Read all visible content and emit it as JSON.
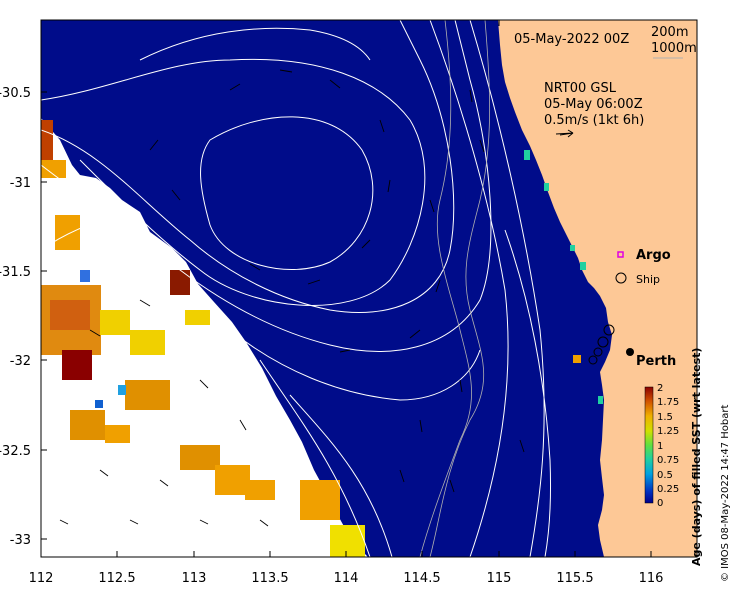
{
  "date_label": "05-May-2022 00Z",
  "bathymetry_legend": {
    "line1": "200m",
    "line2": "1000m"
  },
  "current_info": {
    "line1": "NRT00 GSL",
    "line2": "05-May 06:00Z",
    "line3": "0.5m/s (1kt 6h)"
  },
  "markers": {
    "argo": "Argo",
    "ship": "Ship",
    "city": "Perth"
  },
  "colorbar": {
    "ticks": [
      "2",
      "1.75",
      "1.5",
      "1.25",
      "1",
      "0.75",
      "0.5",
      "0.25",
      "0"
    ],
    "label": "Age (days) of filled SST (wrt latest)",
    "colors": [
      "#00008a",
      "#0030c0",
      "#0070e0",
      "#00b0e0",
      "#20d0a0",
      "#60e040",
      "#c0e000",
      "#f0d000",
      "#f0a000",
      "#e06000",
      "#c02000",
      "#8a0000"
    ]
  },
  "axes": {
    "x_ticks": [
      "112",
      "112.5",
      "113",
      "113.5",
      "114",
      "114.5",
      "115",
      "115.5",
      "116"
    ],
    "y_ticks": [
      "-30.5",
      "-31",
      "-31.5",
      "-32",
      "-32.5",
      "-33"
    ]
  },
  "copyright": "© IMOS 08-May-2022 14:47 Hobart",
  "colors": {
    "ocean": "#000c8a",
    "land": "#fdc896",
    "nodata": "#ffffff",
    "contour": "#ffffff",
    "argo": "#e000e0"
  }
}
